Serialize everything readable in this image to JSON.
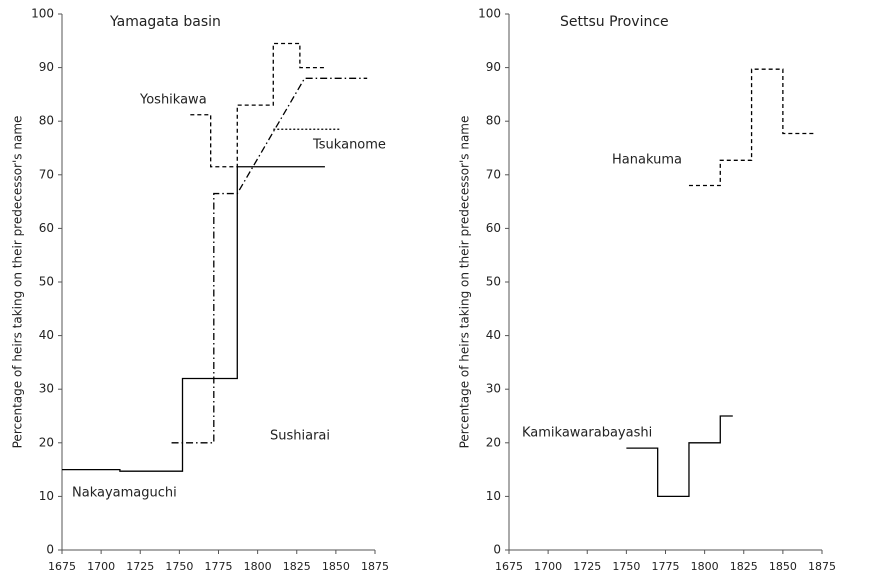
{
  "chart_data": [
    {
      "type": "line",
      "title": "Yamagata basin",
      "ylabel": "Percentage of heirs taking on their predecessor's name",
      "xlim": [
        1675,
        1875
      ],
      "xticks": [
        1675,
        1700,
        1725,
        1750,
        1775,
        1800,
        1825,
        1850,
        1875
      ],
      "ylim": [
        0,
        100
      ],
      "yticks": [
        0,
        10,
        20,
        30,
        40,
        50,
        60,
        70,
        80,
        90,
        100
      ],
      "series": [
        {
          "name": "Nakayamaguchi",
          "color": "#000000",
          "dash": "solid",
          "x": [
            1675,
            1712,
            1712,
            1752,
            1752,
            1787,
            1787,
            1843
          ],
          "values": [
            15,
            15,
            14.7,
            14.7,
            32,
            32,
            71.5,
            71.5
          ]
        },
        {
          "name": "Sushiarai",
          "color": "#000000",
          "dash": "dashdot",
          "x": [
            1745,
            1772,
            1772,
            1787,
            1830,
            1870
          ],
          "values": [
            20,
            20,
            66.5,
            66.5,
            88,
            88
          ]
        },
        {
          "name": "Yoshikawa",
          "color": "#000000",
          "dash": "dashed",
          "x": [
            1757,
            1770,
            1770,
            1787,
            1787,
            1810,
            1810,
            1827,
            1827,
            1843
          ],
          "values": [
            81.2,
            81.2,
            71.5,
            71.5,
            83,
            83,
            94.5,
            94.5,
            90,
            90
          ]
        },
        {
          "name": "Tsukanome",
          "color": "#000000",
          "dash": "dotted",
          "x": [
            1810,
            1853
          ],
          "values": [
            78.5,
            78.5
          ]
        }
      ]
    },
    {
      "type": "line",
      "title": "Settsu Province",
      "ylabel": "Percentage of heirs taking on their predecessor's name",
      "xlim": [
        1675,
        1875
      ],
      "xticks": [
        1675,
        1700,
        1725,
        1750,
        1775,
        1800,
        1825,
        1850,
        1875
      ],
      "ylim": [
        0,
        100
      ],
      "yticks": [
        0,
        10,
        20,
        30,
        40,
        50,
        60,
        70,
        80,
        90,
        100
      ],
      "series": [
        {
          "name": "Kamikawarabayashi",
          "color": "#000000",
          "dash": "solid",
          "x": [
            1750,
            1770,
            1770,
            1790,
            1790,
            1810,
            1810,
            1818
          ],
          "values": [
            19,
            19,
            10,
            10,
            20,
            20,
            25,
            25
          ]
        },
        {
          "name": "Hanakuma",
          "color": "#000000",
          "dash": "dashed",
          "x": [
            1790,
            1810,
            1810,
            1830,
            1830,
            1850,
            1850,
            1870
          ],
          "values": [
            68,
            68,
            72.7,
            72.7,
            89.7,
            89.7,
            77.7,
            77.7
          ]
        }
      ]
    }
  ]
}
